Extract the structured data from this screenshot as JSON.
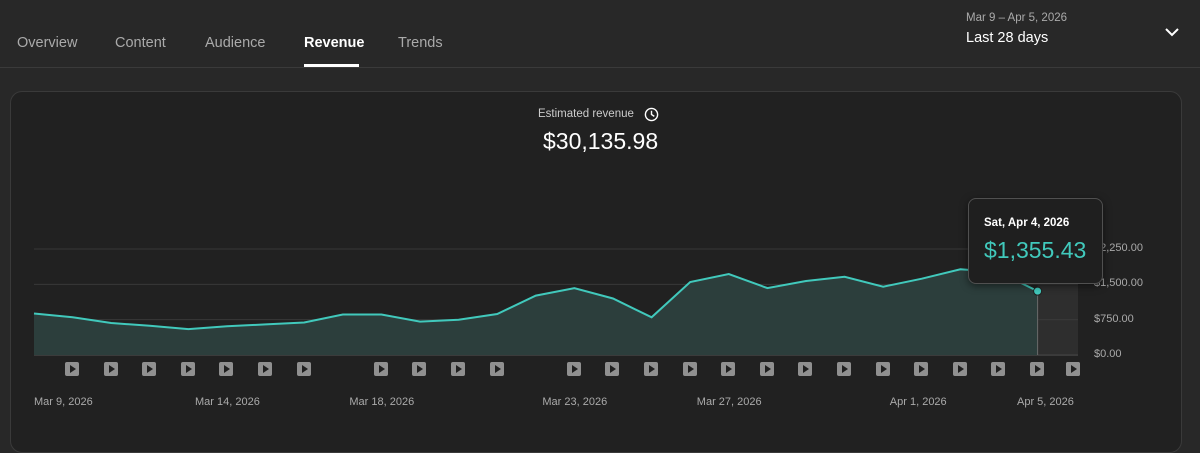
{
  "tabs": [
    {
      "label": "Overview",
      "active": false
    },
    {
      "label": "Content",
      "active": false
    },
    {
      "label": "Audience",
      "active": false
    },
    {
      "label": "Revenue",
      "active": true
    },
    {
      "label": "Trends",
      "active": false
    }
  ],
  "date_range": {
    "range": "Mar 9 – Apr 5, 2026",
    "label": "Last 28 days"
  },
  "metric": {
    "title": "Estimated revenue",
    "value": "$30,135.98"
  },
  "tooltip": {
    "date": "Sat, Apr 4, 2026",
    "value": "$1,355.43"
  },
  "colors": {
    "accent": "#41c9bc",
    "background": "#282828",
    "card": "#212121"
  },
  "icons": {
    "clock": "clock-icon",
    "chevron": "chevron-down-icon",
    "video": "play-icon"
  },
  "chart_data": {
    "type": "area",
    "x": [
      "Mar 9, 2026",
      "Mar 10, 2026",
      "Mar 11, 2026",
      "Mar 12, 2026",
      "Mar 13, 2026",
      "Mar 14, 2026",
      "Mar 15, 2026",
      "Mar 16, 2026",
      "Mar 17, 2026",
      "Mar 18, 2026",
      "Mar 19, 2026",
      "Mar 20, 2026",
      "Mar 21, 2026",
      "Mar 22, 2026",
      "Mar 23, 2026",
      "Mar 24, 2026",
      "Mar 25, 2026",
      "Mar 26, 2026",
      "Mar 27, 2026",
      "Mar 28, 2026",
      "Mar 29, 2026",
      "Mar 30, 2026",
      "Mar 31, 2026",
      "Apr 1, 2026",
      "Apr 2, 2026",
      "Apr 3, 2026",
      "Apr 4, 2026"
    ],
    "values": [
      880,
      800,
      680,
      620,
      550,
      610,
      650,
      690,
      860,
      860,
      710,
      750,
      870,
      1260,
      1420,
      1200,
      800,
      1550,
      1720,
      1420,
      1570,
      1660,
      1450,
      1620,
      1820,
      1760,
      1355.43
    ],
    "xticks": [
      "Mar 9, 2026",
      "Mar 14, 2026",
      "Mar 18, 2026",
      "Mar 23, 2026",
      "Mar 27, 2026",
      "Apr 1, 2026",
      "Apr 5, 2026"
    ],
    "yticks": [
      "$0.00",
      "$750.00",
      "$1,500.00",
      "$2,250.00"
    ],
    "ylim": [
      0,
      2250
    ],
    "grid": true,
    "highlight": "Apr 4, 2026"
  },
  "video_markers": [
    "Mar 9, 2026",
    "Mar 10, 2026",
    "Mar 11, 2026",
    "Mar 12, 2026",
    "Mar 13, 2026",
    "Mar 14, 2026",
    "Mar 15, 2026",
    "Mar 17, 2026",
    "Mar 18, 2026",
    "Mar 19, 2026",
    "Mar 20, 2026",
    "Mar 22, 2026",
    "Mar 23, 2026",
    "Mar 24, 2026",
    "Mar 25, 2026",
    "Mar 26, 2026",
    "Mar 27, 2026",
    "Mar 28, 2026",
    "Mar 29, 2026",
    "Mar 30, 2026",
    "Mar 31, 2026",
    "Apr 1, 2026",
    "Apr 2, 2026",
    "Apr 3, 2026",
    "Apr 4, 2026",
    "Apr 5, 2026"
  ]
}
